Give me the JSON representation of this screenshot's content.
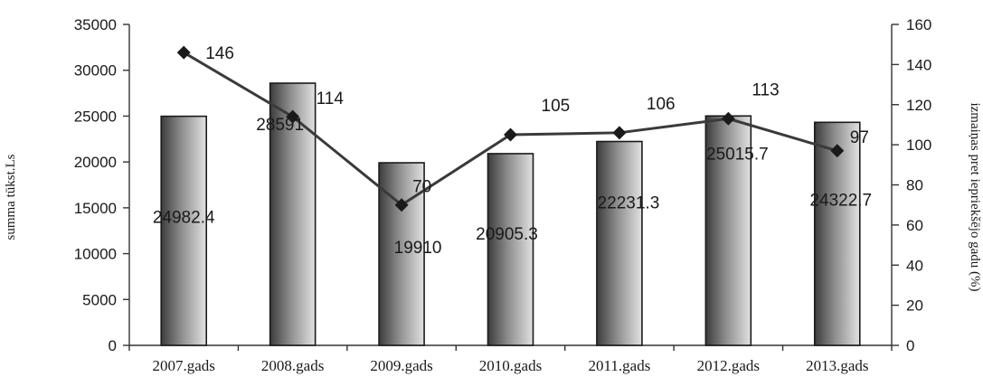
{
  "chart_data": {
    "type": "bar",
    "categories": [
      "2007.gads",
      "2008.gads",
      "2009.gads",
      "2010.gads",
      "2011.gads",
      "2012.gads",
      "2013.gads"
    ],
    "series": [
      {
        "type": "bar",
        "axis": "left",
        "values": [
          24982.4,
          28591,
          19910,
          20905.3,
          22231.3,
          25015.7,
          24322.7
        ],
        "labels": [
          "24982.4",
          "28591",
          "19910",
          "20905.3",
          "22231.3",
          "25015.7",
          "24322.7"
        ]
      },
      {
        "type": "line",
        "axis": "right",
        "values": [
          146,
          114,
          70,
          105,
          106,
          113,
          97
        ],
        "labels": [
          "146",
          "114",
          "70",
          "105",
          "106",
          "113",
          "97"
        ]
      }
    ],
    "ylabel": "summa tūkst.Ls",
    "y2label": "izmaiņas pret iepriekšējo gadu (%)",
    "ylim": [
      0,
      35000
    ],
    "y2lim": [
      0,
      160
    ],
    "yticks": [
      "0",
      "5000",
      "10000",
      "15000",
      "20000",
      "25000",
      "30000",
      "35000"
    ],
    "y2ticks": [
      "0",
      "20",
      "40",
      "60",
      "80",
      "100",
      "120",
      "140",
      "160"
    ],
    "grid": false,
    "legend": "none"
  }
}
